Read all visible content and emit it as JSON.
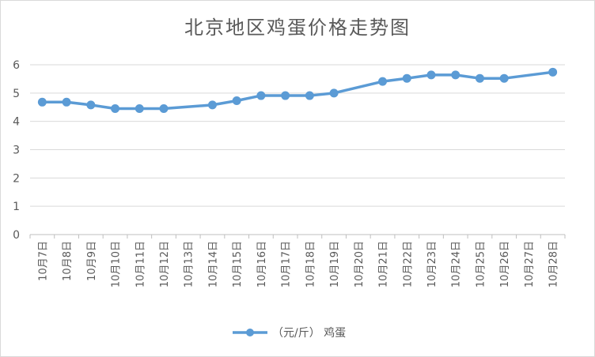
{
  "chart_data": {
    "type": "line",
    "title": "北京地区鸡蛋价格走势图",
    "xlabel": "",
    "ylabel": "",
    "categories": [
      "10月7日",
      "10月8日",
      "10月9日",
      "10月10日",
      "10月11日",
      "10月12日",
      "10月13日",
      "10月14日",
      "10月15日",
      "10月16日",
      "10月17日",
      "10月18日",
      "10月19日",
      "10月20日",
      "10月21日",
      "10月22日",
      "10月23日",
      "10月24日",
      "10月25日",
      "10月26日",
      "10月27日",
      "10月28日"
    ],
    "y_ticks": [
      "0",
      "1",
      "2",
      "3",
      "4",
      "5",
      "6"
    ],
    "ylim": [
      0,
      6
    ],
    "grid": true,
    "legend_position": "bottom",
    "series": [
      {
        "name": "（元/斤） 鸡蛋",
        "color": "#5b9bd5",
        "values": [
          4.68,
          4.68,
          4.58,
          4.45,
          4.45,
          4.45,
          null,
          4.58,
          4.73,
          4.91,
          4.91,
          4.91,
          5.0,
          null,
          5.41,
          5.52,
          5.64,
          5.64,
          5.52,
          5.52,
          null,
          5.74
        ]
      }
    ]
  }
}
